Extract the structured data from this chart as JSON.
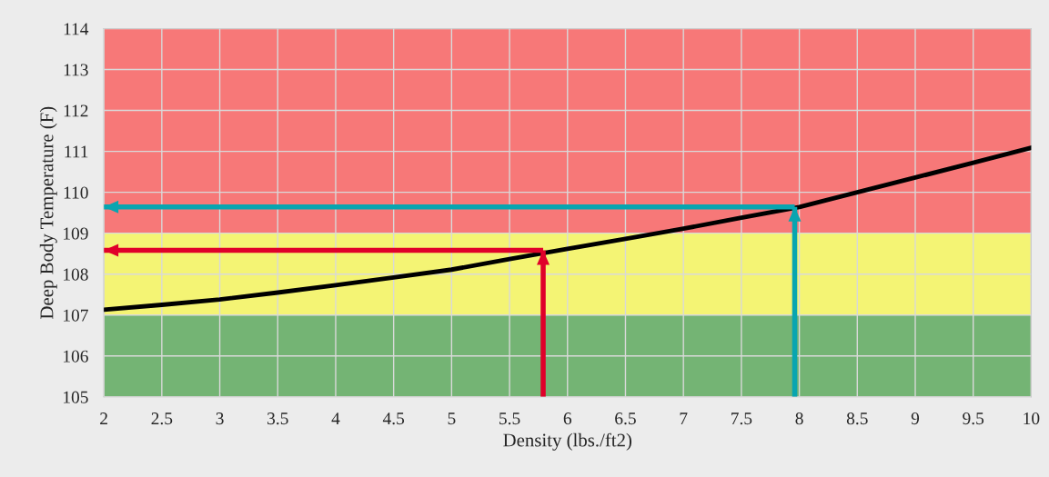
{
  "chart_data": {
    "type": "line",
    "xlabel": "Density (lbs./ft2)",
    "ylabel": "Deep Body Temperature (F)",
    "xlim": [
      2,
      10
    ],
    "xticks": [
      2,
      2.5,
      3,
      3.5,
      4,
      4.5,
      5,
      5.5,
      6,
      6.5,
      7,
      7.5,
      8,
      8.5,
      9,
      9.5,
      10
    ],
    "ylim": [
      105,
      114
    ],
    "yticks": [
      105,
      106,
      107,
      108,
      109,
      110,
      111,
      112,
      113,
      114
    ],
    "grid": true,
    "legend": false,
    "bands": [
      {
        "axis": "y",
        "from": 105,
        "to": 107,
        "color": "#74b474"
      },
      {
        "axis": "y",
        "from": 107,
        "to": 109,
        "color": "#f4f474"
      },
      {
        "axis": "y",
        "from": 109,
        "to": 114,
        "color": "#f77878"
      }
    ],
    "series": [
      {
        "color": "#000000",
        "x": [
          2,
          2.5,
          3,
          3.5,
          4,
          4.5,
          5,
          5.5,
          6,
          6.5,
          7,
          7.5,
          8,
          8.5,
          9,
          9.5,
          10
        ],
        "values": [
          107.13,
          107.25,
          107.38,
          107.55,
          107.73,
          107.92,
          108.11,
          108.37,
          108.62,
          108.86,
          109.11,
          109.38,
          109.64,
          110.0,
          110.36,
          110.72,
          111.09
        ]
      },
      {
        "color": "#e0002a",
        "x": [
          5.79,
          5.79
        ],
        "values": [
          105,
          108.58
        ]
      },
      {
        "color": "#e0002a",
        "x": [
          5.79,
          2
        ],
        "values": [
          108.58,
          108.58
        ]
      },
      {
        "color": "#08a5b0",
        "x": [
          7.96,
          7.96
        ],
        "values": [
          105,
          109.64
        ]
      },
      {
        "color": "#08a5b0",
        "x": [
          7.96,
          2
        ],
        "values": [
          109.64,
          109.64
        ]
      }
    ]
  }
}
